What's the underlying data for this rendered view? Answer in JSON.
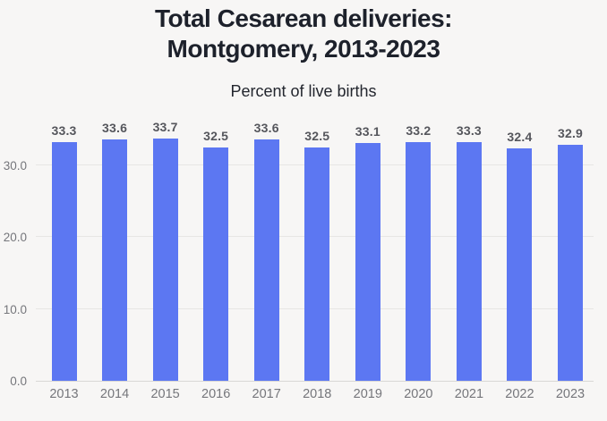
{
  "header": {
    "title_line1": "Total Cesarean deliveries:",
    "title_line2": "Montgomery, 2013-2023",
    "subtitle": "Percent of live births"
  },
  "chart_data": {
    "type": "bar",
    "title": "Total Cesarean deliveries: Montgomery, 2013-2023",
    "subtitle": "Percent of live births",
    "categories": [
      "2013",
      "2014",
      "2015",
      "2016",
      "2017",
      "2018",
      "2019",
      "2020",
      "2021",
      "2022",
      "2023"
    ],
    "values": [
      33.3,
      33.6,
      33.7,
      32.5,
      33.6,
      32.5,
      33.1,
      33.2,
      33.3,
      32.4,
      32.9
    ],
    "value_labels": [
      "33.3",
      "33.6",
      "33.7",
      "32.5",
      "33.6",
      "32.5",
      "33.1",
      "33.2",
      "33.3",
      "32.4",
      "32.9"
    ],
    "xlabel": "",
    "ylabel": "Percent of live births",
    "ylim": [
      0,
      35.6
    ],
    "yticks": [
      0,
      10,
      20,
      30
    ],
    "ytick_labels": [
      "0.0",
      "10.0",
      "20.0",
      "30.0"
    ],
    "grid": true,
    "legend": "none",
    "colors": {
      "bar": "#5c77f2",
      "value_label": "#55565c",
      "axis_label": "#75767b",
      "gridline": "#e7e6e4",
      "baseline": "#d8d7d5",
      "background": "#f7f6f5",
      "title": "#1d212b"
    }
  }
}
